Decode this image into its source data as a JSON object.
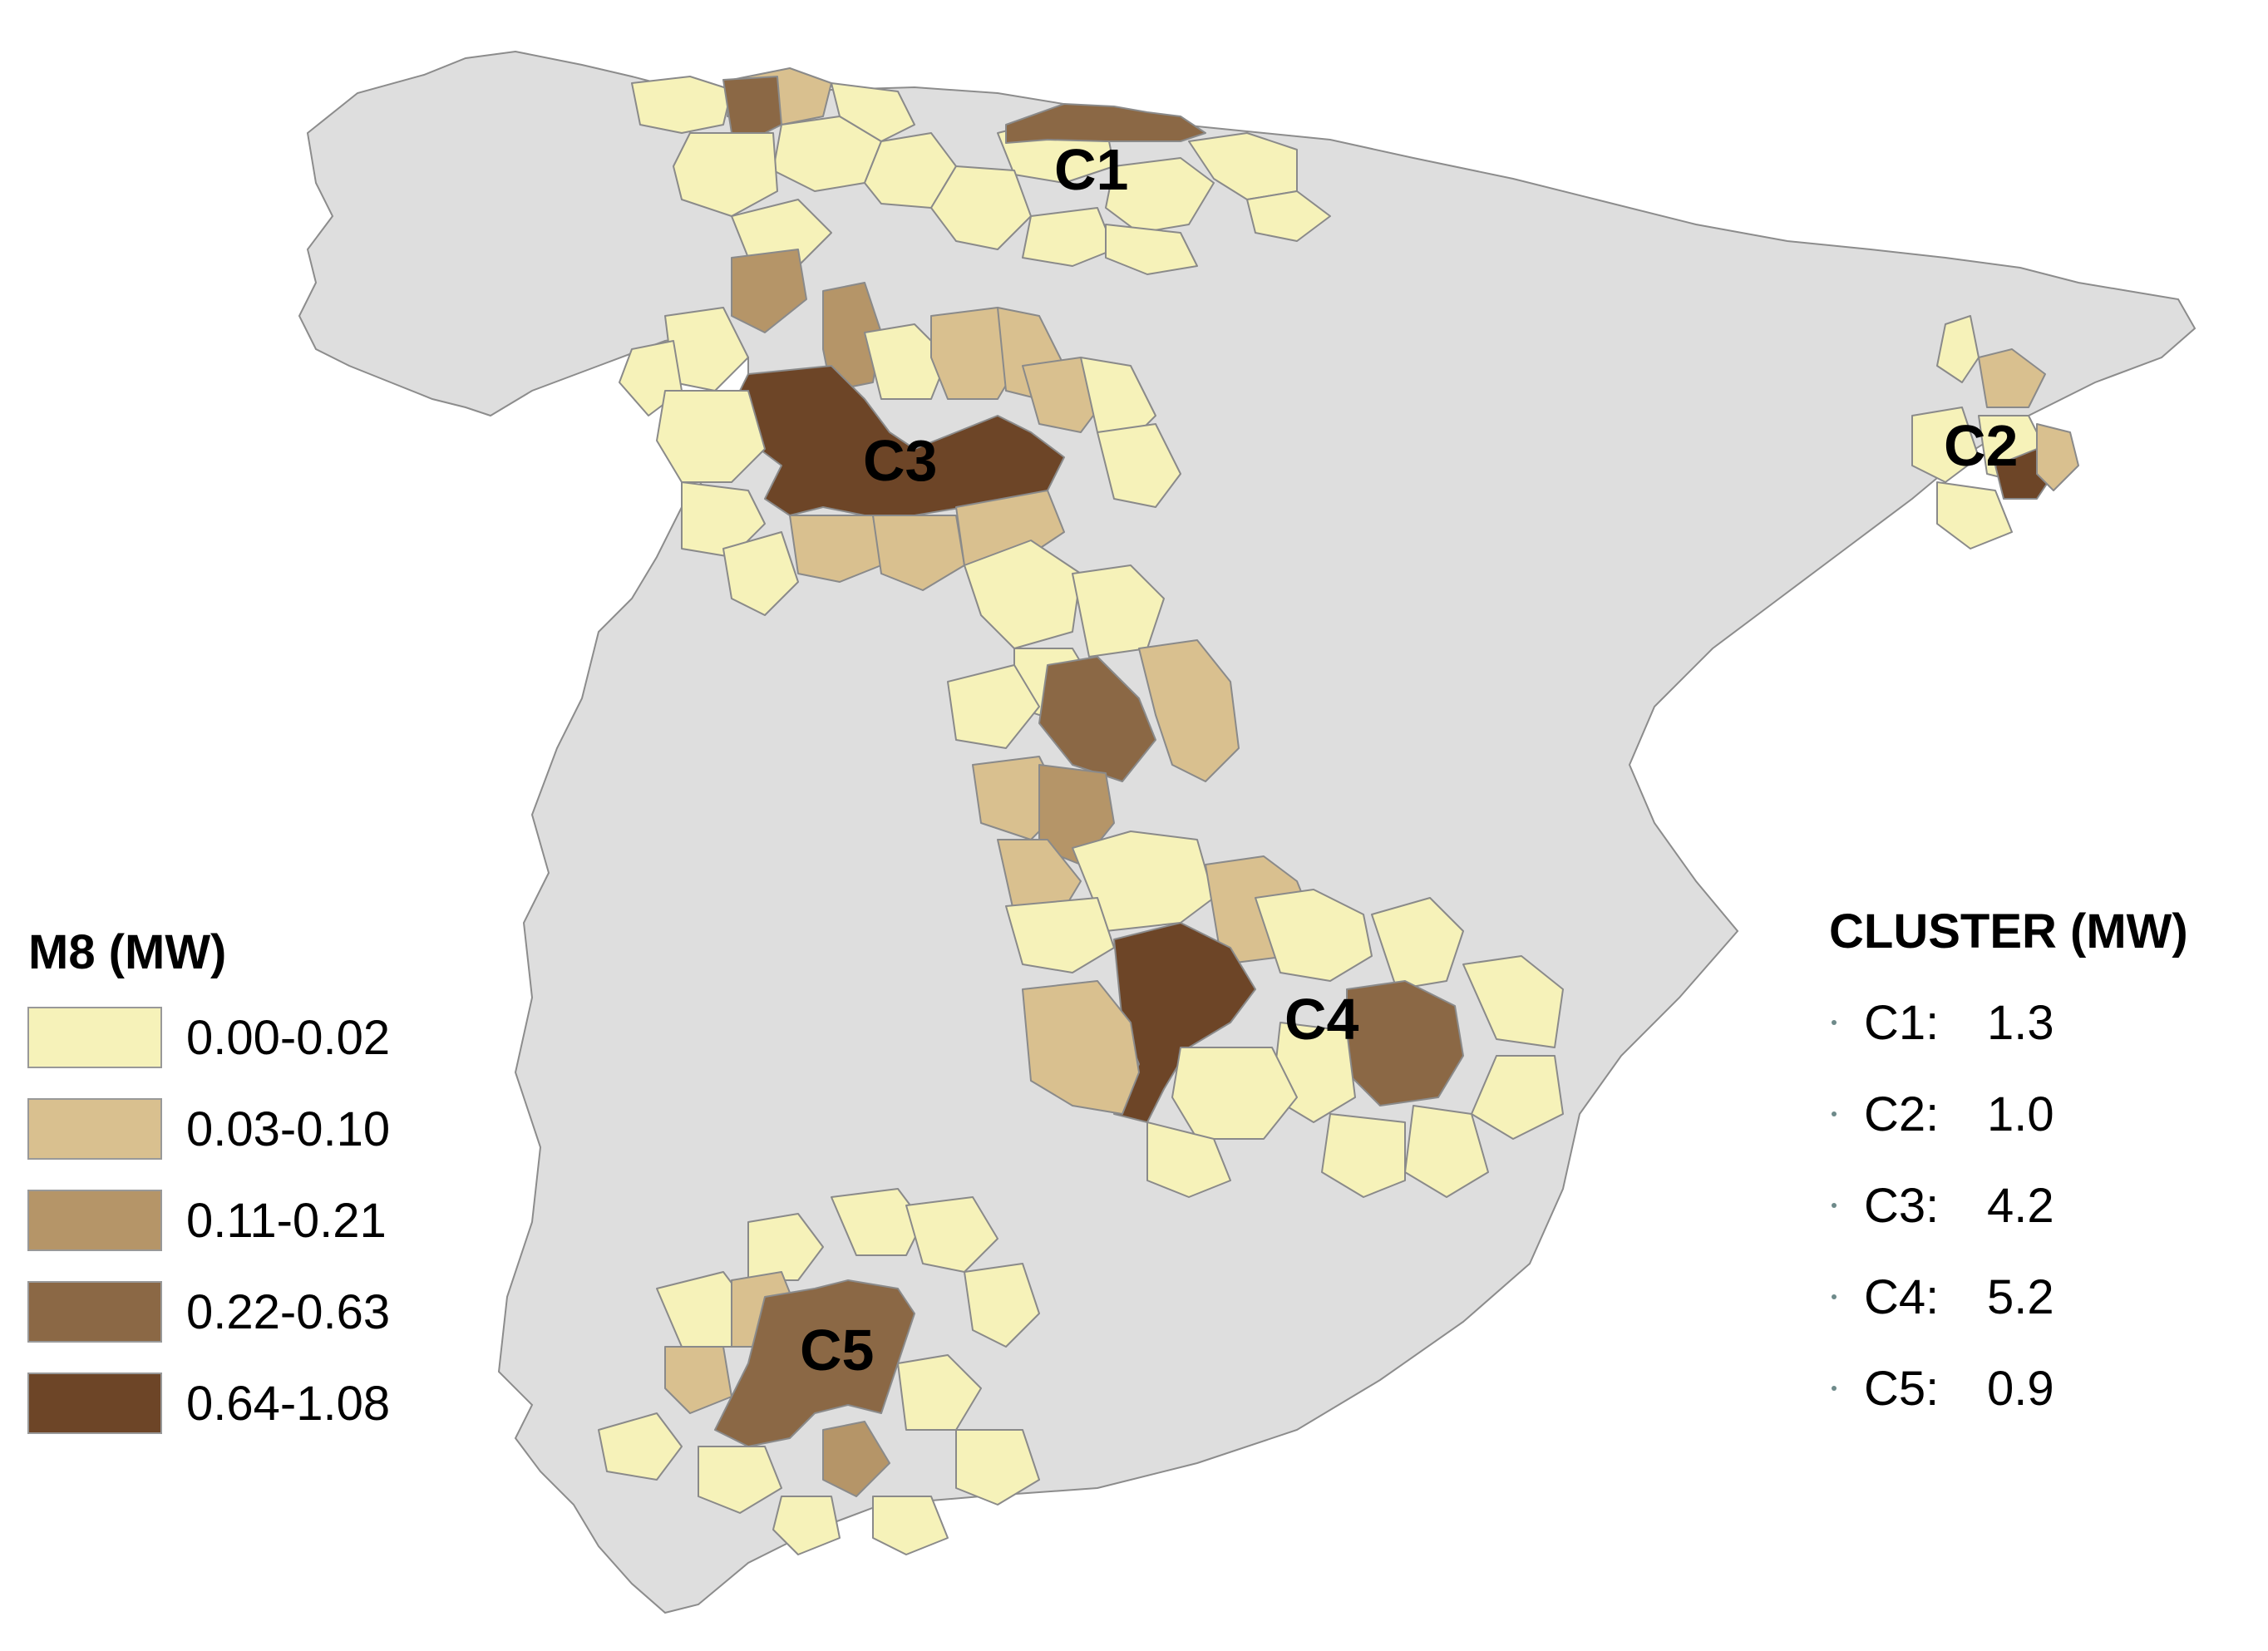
{
  "colors": {
    "background": "#ffffff",
    "land": "#dedede",
    "land_border": "#8c8c8c",
    "region_border": "#8a8a8a"
  },
  "classes": [
    {
      "label": "0.00-0.02",
      "color": "#f6f2b9"
    },
    {
      "label": "0.03-0.10",
      "color": "#d9c08f"
    },
    {
      "label": "0.11-0.21",
      "color": "#b59568"
    },
    {
      "label": "0.22-0.63",
      "color": "#8b6845"
    },
    {
      "label": "0.64-1.08",
      "color": "#6d4527"
    }
  ],
  "legend_m8": {
    "title": "M8 (MW)"
  },
  "legend_cluster": {
    "title": "CLUSTER (MW)",
    "items": [
      {
        "name": "C1:",
        "value": "1.3"
      },
      {
        "name": "C2:",
        "value": "1.0"
      },
      {
        "name": "C3:",
        "value": "4.2"
      },
      {
        "name": "C4:",
        "value": "5.2"
      },
      {
        "name": "C5:",
        "value": "0.9"
      }
    ]
  },
  "clusters": {
    "c1": "C1",
    "c2": "C2",
    "c3": "C3",
    "c4": "C4",
    "c5": "C5"
  }
}
